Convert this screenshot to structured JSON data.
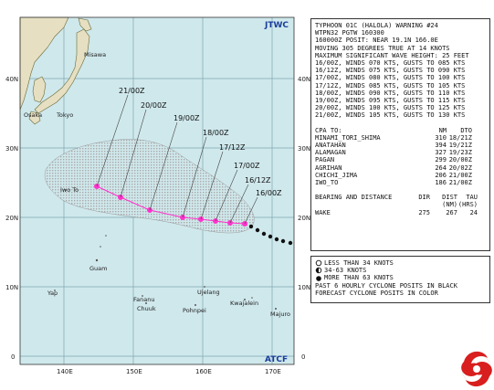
{
  "map": {
    "corner_label_top": "JTWC",
    "corner_label_bottom": "ATCF",
    "lon_labels": [
      "140E",
      "150E",
      "160E",
      "170E"
    ],
    "lat_labels": [
      "40N",
      "30N",
      "20N",
      "10N",
      "0"
    ],
    "lat_labels_right": [
      "40N",
      "30N",
      "20N",
      "10N",
      "0"
    ],
    "places": [
      "Misawa",
      "Osaka",
      "Tokyo",
      "Iwo To",
      "Guam",
      "Yap",
      "Fananu",
      "Chuuk",
      "Ujelang",
      "Pohnpei",
      "Kwajalein",
      "Majuro"
    ],
    "forecast_times": [
      "21/00Z",
      "20/00Z",
      "19/00Z",
      "18/00Z",
      "17/12Z",
      "17/00Z",
      "16/12Z",
      "16/00Z"
    ]
  },
  "warning": {
    "header": [
      "TYPHOON 01C (HALOLA) WARNING #24",
      "WTPN32 PGTW 160300",
      "160000Z POSIT: NEAR 19.1N 166.0E",
      "MOVING 305 DEGREES TRUE AT 14 KNOTS",
      "MAXIMUM SIGNIFICANT WAVE HEIGHT: 25 FEET",
      "16/00Z, WINDS 070 KTS, GUSTS TO 085 KTS",
      "16/12Z, WINDS 075 KTS, GUSTS TO 090 KTS",
      "17/00Z, WINDS 080 KTS, GUSTS TO 100 KTS",
      "17/12Z, WINDS 085 KTS, GUSTS TO 105 KTS",
      "18/00Z, WINDS 090 KTS, GUSTS TO 110 KTS",
      "19/00Z, WINDS 095 KTS, GUSTS TO 115 KTS",
      "20/00Z, WINDS 100 KTS, GUSTS TO 125 KTS",
      "21/00Z, WINDS 105 KTS, GUSTS TO 130 KTS"
    ],
    "cpa_header": {
      "label": "CPA TO:",
      "nm": "NM",
      "dto": "DTO"
    },
    "cpa_rows": [
      {
        "place": "MINAMI_TORI_SHIMA",
        "nm": "310",
        "dto": "18/21Z"
      },
      {
        "place": "ANATAHAN",
        "nm": "394",
        "dto": "19/21Z"
      },
      {
        "place": "ALAMAGAN",
        "nm": "327",
        "dto": "19/23Z"
      },
      {
        "place": "PAGAN",
        "nm": "299",
        "dto": "20/00Z"
      },
      {
        "place": "AGRIHAN",
        "nm": "264",
        "dto": "20/02Z"
      },
      {
        "place": "CHICHI_JIMA",
        "nm": "206",
        "dto": "21/00Z"
      },
      {
        "place": "IWO_TO",
        "nm": "186",
        "dto": "21/00Z"
      }
    ],
    "bearing_header": {
      "label": "BEARING AND DISTANCE",
      "dir": "DIR",
      "dist": "DIST",
      "tau": "TAU"
    },
    "bearing_units": {
      "dist": "(NM)",
      "tau": "(HRS)"
    },
    "bearing_row": {
      "place": "WAKE",
      "dir": "275",
      "dist": "267",
      "tau": "24"
    }
  },
  "legend": {
    "items": [
      {
        "symbol": "circle-open",
        "text": "LESS THAN 34 KNOTS"
      },
      {
        "symbol": "half-filled",
        "text": "34-63 KNOTS"
      },
      {
        "symbol": "filled",
        "text": "MORE THAN 63 KNOTS"
      },
      {
        "symbol": "none",
        "text": "PAST 6 HOURLY CYCLONE POSITS IN BLACK"
      },
      {
        "symbol": "none",
        "text": "FORECAST CYCLONE POSITS IN COLOR"
      }
    ]
  },
  "colors": {
    "ocean": "#cfe8ec",
    "land": "#e6dfc1",
    "coast": "#6a6a3a",
    "grid": "#7ea7b0",
    "track": "#ff33cc",
    "swath": "#b4b4b4"
  }
}
